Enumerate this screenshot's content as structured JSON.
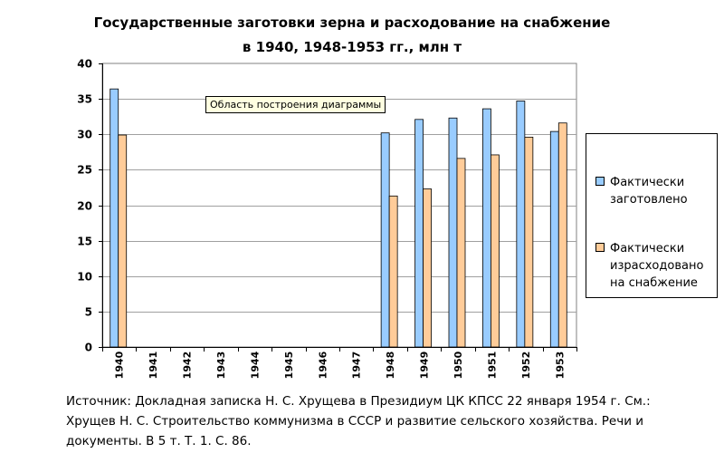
{
  "chart_data": {
    "type": "bar",
    "title": [
      "Государственные заготовки зерна и расходование на снабжение",
      "в 1940, 1948-1953 гг., млн т"
    ],
    "categories": [
      "1940",
      "1941",
      "1942",
      "1943",
      "1944",
      "1945",
      "1946",
      "1947",
      "1948",
      "1949",
      "1950",
      "1951",
      "1952",
      "1953"
    ],
    "series": [
      {
        "name": "Фактически заготовлено",
        "color": "#99ccff",
        "values": [
          36.4,
          null,
          null,
          null,
          null,
          null,
          null,
          null,
          30.2,
          32.1,
          32.3,
          33.6,
          34.7,
          30.4
        ]
      },
      {
        "name": "Фактически израсходовано на снабжение",
        "color": "#ffcc99",
        "values": [
          29.9,
          null,
          null,
          null,
          null,
          null,
          null,
          null,
          21.3,
          22.3,
          26.6,
          27.1,
          29.6,
          31.6
        ]
      }
    ],
    "ylim": [
      0,
      40
    ],
    "yticks": [
      0,
      5,
      10,
      15,
      20,
      25,
      30,
      35,
      40
    ],
    "xlabel": "",
    "ylabel": "",
    "grid": "horizontal",
    "legend_position": "right",
    "tooltip": "Область построения диаграммы"
  },
  "source_note": "Источник: Докладная записка Н. С. Хрущева в Президиум ЦК КПСС 22 января 1954 г. См.: Хрущев Н. С. Строительство коммунизма в СССР и развитие сельского хозяйства. Речи и документы. В 5 т. Т. 1. С. 86."
}
